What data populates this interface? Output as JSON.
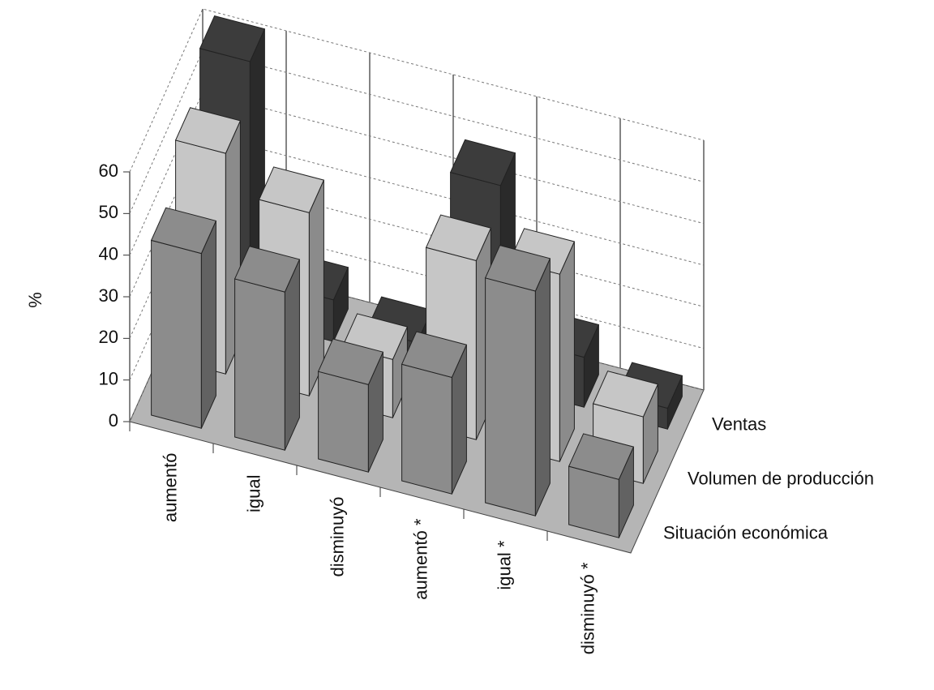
{
  "chart_data": {
    "type": "bar3d",
    "y_label": "%",
    "categories": [
      "aumentó",
      "igual",
      "disminuyó",
      "aumentó *",
      "igual *",
      "disminuyó *"
    ],
    "series": [
      {
        "name": "Situación económica",
        "color": "#8c8c8c",
        "values": [
          42,
          38,
          21,
          28,
          54,
          14
        ]
      },
      {
        "name": "Volumen de producción",
        "color": "#c6c6c6",
        "values": [
          53,
          44,
          14,
          43,
          45,
          16
        ]
      },
      {
        "name": "Ventas",
        "color": "#3c3c3c",
        "values": [
          62,
          10,
          5,
          48,
          12,
          5
        ]
      }
    ],
    "ylim": [
      0,
      60
    ],
    "yticks": [
      0,
      10,
      20,
      30,
      40,
      50,
      60
    ],
    "grid": true
  }
}
